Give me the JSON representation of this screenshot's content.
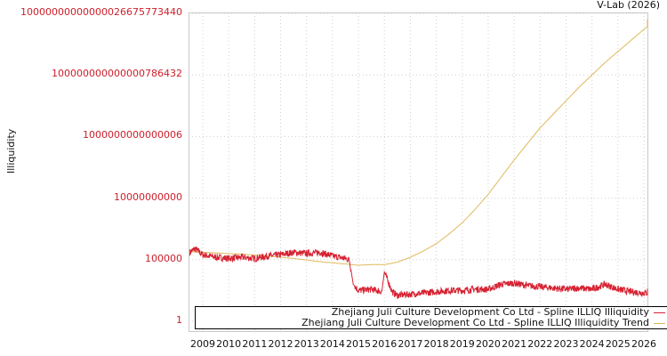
{
  "credit": "V-Lab (2026)",
  "y_axis_label": "Illiquidity",
  "legend": [
    {
      "label": "Zhejiang Juli Culture Development Co Ltd - Spline ILLIQ Illiquidity",
      "color": "#d62232"
    },
    {
      "label": "Zhejiang Juli Culture Development Co Ltd - Spline ILLIQ Illiquidity Trend",
      "color": "#e0b85a"
    }
  ],
  "colors": {
    "series": "#d62232",
    "trend": "#e0b85a",
    "tick_label": "#cc1f2b",
    "grid": "#cfcfcf",
    "frame": "#c8c8c8"
  },
  "chart_data": {
    "type": "line",
    "title": "",
    "xlabel": "",
    "ylabel": "Illiquidity",
    "y_scale": "log",
    "ylim": [
      1,
      1e+25
    ],
    "y_tick_labels": [
      "10000000000000026675773440",
      "100000000000000786432",
      "1000000000000006",
      "10000000000",
      "100000",
      "1"
    ],
    "y_tick_exponents": [
      25,
      20,
      15,
      10,
      5,
      0
    ],
    "x_tick_labels": [
      "2009",
      "2010",
      "2011",
      "2012",
      "2013",
      "2014",
      "2015",
      "2016",
      "2017",
      "2018",
      "2019",
      "2020",
      "2021",
      "2022",
      "2023",
      "2024",
      "2025",
      "2026"
    ],
    "xlim": [
      2008.45,
      2026.55
    ],
    "grid": true,
    "legend_position": "bottom-inside",
    "series": [
      {
        "name": "Zhejiang Juli Culture Development Co Ltd - Spline ILLIQ Illiquidity",
        "x_log10_points": [
          [
            2008.5,
            5.6
          ],
          [
            2008.7,
            5.9
          ],
          [
            2009.0,
            5.4
          ],
          [
            2009.5,
            5.2
          ],
          [
            2010.0,
            5.1
          ],
          [
            2010.5,
            5.2
          ],
          [
            2011.0,
            5.1
          ],
          [
            2011.5,
            5.3
          ],
          [
            2012.0,
            5.4
          ],
          [
            2012.5,
            5.6
          ],
          [
            2013.0,
            5.5
          ],
          [
            2013.5,
            5.6
          ],
          [
            2014.0,
            5.3
          ],
          [
            2014.5,
            5.1
          ],
          [
            2014.65,
            5.0
          ],
          [
            2014.8,
            3.0
          ],
          [
            2015.0,
            2.5
          ],
          [
            2015.5,
            2.6
          ],
          [
            2015.9,
            2.4
          ],
          [
            2016.0,
            4.0
          ],
          [
            2016.3,
            2.4
          ],
          [
            2016.5,
            2.1
          ],
          [
            2017.0,
            2.2
          ],
          [
            2017.5,
            2.3
          ],
          [
            2018.0,
            2.4
          ],
          [
            2018.5,
            2.5
          ],
          [
            2019.0,
            2.5
          ],
          [
            2019.5,
            2.6
          ],
          [
            2020.0,
            2.6
          ],
          [
            2020.5,
            3.0
          ],
          [
            2021.0,
            3.1
          ],
          [
            2021.5,
            2.9
          ],
          [
            2022.0,
            2.8
          ],
          [
            2022.5,
            2.7
          ],
          [
            2023.0,
            2.6
          ],
          [
            2023.5,
            2.7
          ],
          [
            2024.0,
            2.6
          ],
          [
            2024.5,
            3.0
          ],
          [
            2025.0,
            2.6
          ],
          [
            2025.5,
            2.4
          ],
          [
            2026.0,
            2.3
          ],
          [
            2026.5,
            2.4
          ]
        ]
      },
      {
        "name": "Zhejiang Juli Culture Development Co Ltd - Spline ILLIQ Illiquidity Trend",
        "x_log10_points": [
          [
            2008.5,
            5.65
          ],
          [
            2009.5,
            5.55
          ],
          [
            2010.5,
            5.45
          ],
          [
            2011.5,
            5.3
          ],
          [
            2012.5,
            5.1
          ],
          [
            2013.5,
            4.85
          ],
          [
            2014.5,
            4.65
          ],
          [
            2015.0,
            4.55
          ],
          [
            2015.5,
            4.6
          ],
          [
            2016.0,
            4.6
          ],
          [
            2016.5,
            4.8
          ],
          [
            2017.0,
            5.2
          ],
          [
            2017.5,
            5.7
          ],
          [
            2018.0,
            6.3
          ],
          [
            2018.5,
            7.1
          ],
          [
            2019.0,
            8.0
          ],
          [
            2019.5,
            9.1
          ],
          [
            2020.0,
            10.3
          ],
          [
            2020.5,
            11.7
          ],
          [
            2021.0,
            13.1
          ],
          [
            2021.5,
            14.4
          ],
          [
            2022.0,
            15.7
          ],
          [
            2022.5,
            16.8
          ],
          [
            2023.0,
            17.9
          ],
          [
            2023.5,
            19.0
          ],
          [
            2024.0,
            20.0
          ],
          [
            2024.5,
            21.0
          ],
          [
            2025.0,
            21.9
          ],
          [
            2025.5,
            22.8
          ],
          [
            2026.0,
            23.7
          ],
          [
            2026.5,
            24.5
          ]
        ]
      }
    ]
  }
}
